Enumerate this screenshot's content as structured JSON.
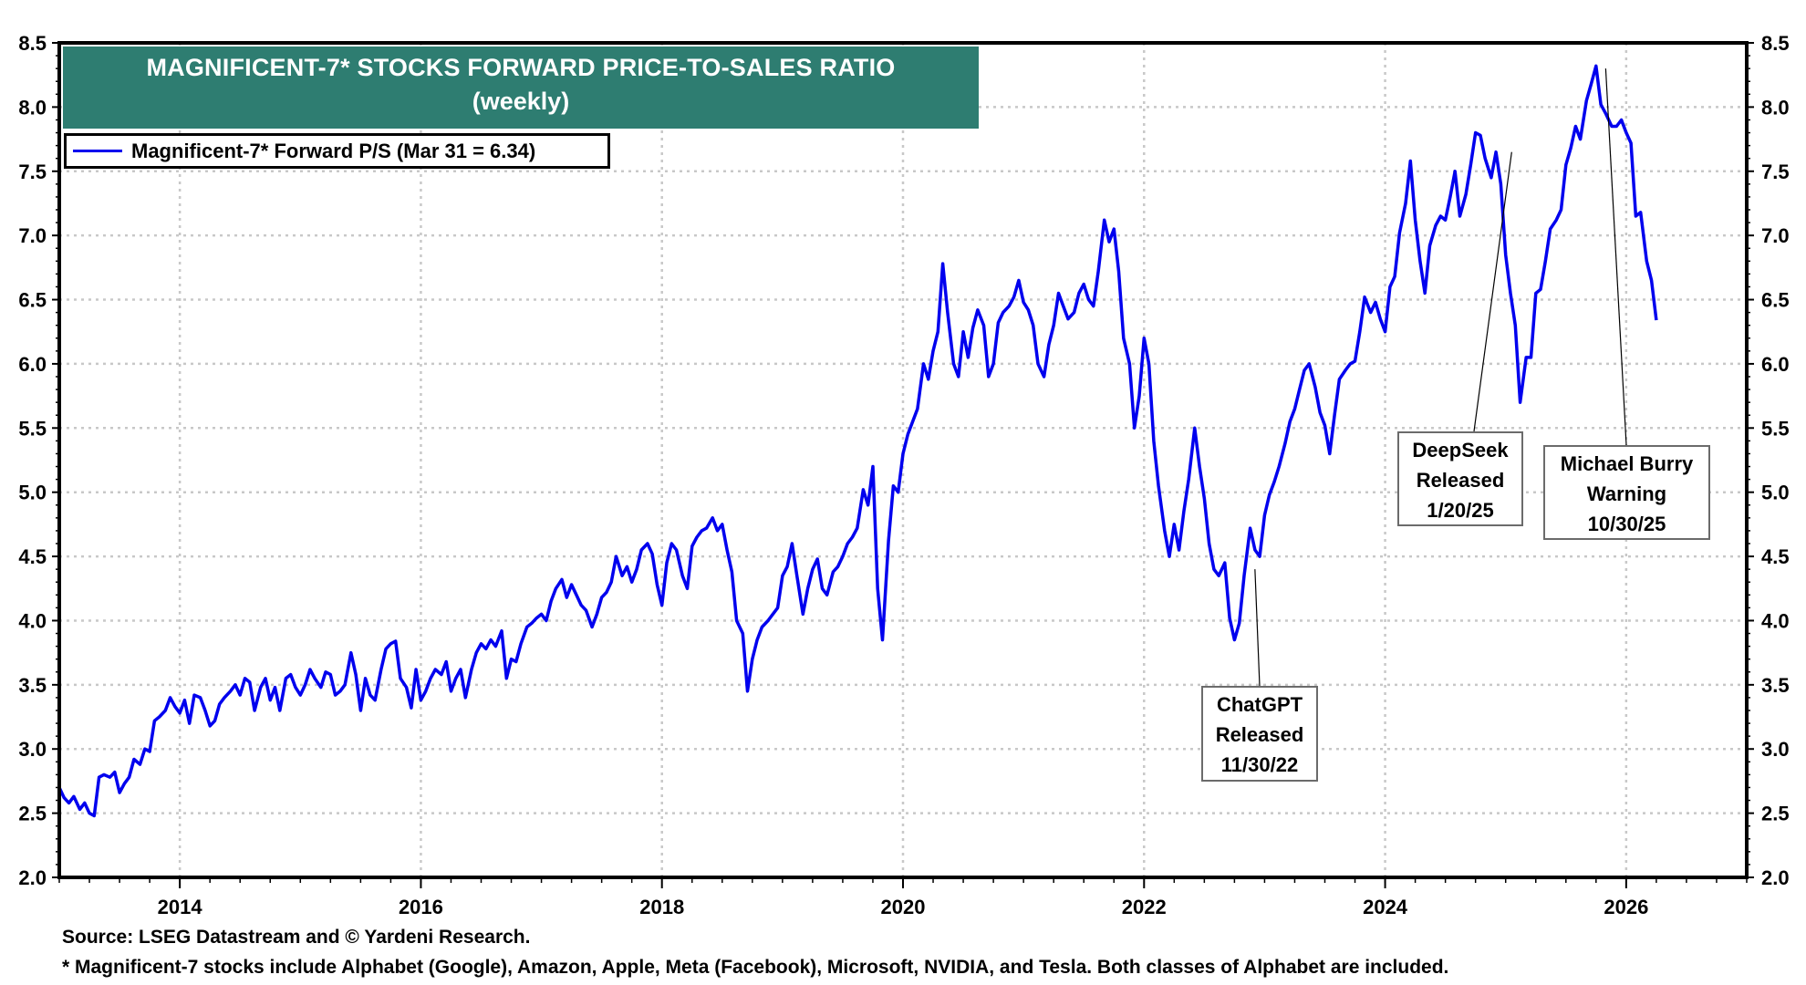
{
  "chart_data": {
    "type": "line",
    "title": "MAGNIFICENT-7* STOCKS FORWARD PRICE-TO-SALES RATIO",
    "subtitle": "(weekly)",
    "xlabel": "",
    "ylabel": "",
    "xlim": [
      2013.0,
      2027.0
    ],
    "ylim": [
      2.0,
      8.5
    ],
    "x_ticks": [
      "2014",
      "2016",
      "2018",
      "2020",
      "2022",
      "2024",
      "2026"
    ],
    "x_tick_values": [
      2014,
      2016,
      2018,
      2020,
      2022,
      2024,
      2026
    ],
    "y_ticks": [
      "2.0",
      "2.5",
      "3.0",
      "3.5",
      "4.0",
      "4.5",
      "5.0",
      "5.5",
      "6.0",
      "6.5",
      "7.0",
      "7.5",
      "8.0",
      "8.5"
    ],
    "y_tick_values": [
      2.0,
      2.5,
      3.0,
      3.5,
      4.0,
      4.5,
      5.0,
      5.5,
      6.0,
      6.5,
      7.0,
      7.5,
      8.0,
      8.5
    ],
    "grid": true,
    "legend_position": "top-left",
    "series": [
      {
        "name": "Magnificent-7* Forward P/S (Mar 31 = 6.34)",
        "color": "#0000ee",
        "x": [
          2013.0,
          2013.04,
          2013.08,
          2013.12,
          2013.17,
          2013.21,
          2013.25,
          2013.29,
          2013.33,
          2013.37,
          2013.42,
          2013.46,
          2013.5,
          2013.54,
          2013.58,
          2013.62,
          2013.67,
          2013.71,
          2013.75,
          2013.79,
          2013.83,
          2013.88,
          2013.92,
          2013.96,
          2014.0,
          2014.04,
          2014.08,
          2014.12,
          2014.17,
          2014.21,
          2014.25,
          2014.29,
          2014.33,
          2014.37,
          2014.42,
          2014.46,
          2014.5,
          2014.54,
          2014.58,
          2014.62,
          2014.67,
          2014.71,
          2014.75,
          2014.79,
          2014.83,
          2014.88,
          2014.92,
          2014.96,
          2015.0,
          2015.04,
          2015.08,
          2015.12,
          2015.17,
          2015.21,
          2015.25,
          2015.29,
          2015.33,
          2015.37,
          2015.42,
          2015.46,
          2015.5,
          2015.54,
          2015.58,
          2015.62,
          2015.67,
          2015.71,
          2015.75,
          2015.79,
          2015.83,
          2015.88,
          2015.92,
          2015.96,
          2016.0,
          2016.04,
          2016.08,
          2016.12,
          2016.17,
          2016.21,
          2016.25,
          2016.29,
          2016.33,
          2016.37,
          2016.42,
          2016.46,
          2016.5,
          2016.54,
          2016.58,
          2016.62,
          2016.67,
          2016.71,
          2016.75,
          2016.79,
          2016.83,
          2016.88,
          2016.92,
          2016.96,
          2017.0,
          2017.04,
          2017.08,
          2017.12,
          2017.17,
          2017.21,
          2017.25,
          2017.29,
          2017.33,
          2017.37,
          2017.42,
          2017.46,
          2017.5,
          2017.54,
          2017.58,
          2017.62,
          2017.67,
          2017.71,
          2017.75,
          2017.79,
          2017.83,
          2017.88,
          2017.92,
          2017.96,
          2018.0,
          2018.04,
          2018.08,
          2018.12,
          2018.17,
          2018.21,
          2018.25,
          2018.29,
          2018.33,
          2018.37,
          2018.42,
          2018.46,
          2018.5,
          2018.54,
          2018.58,
          2018.62,
          2018.67,
          2018.71,
          2018.75,
          2018.79,
          2018.83,
          2018.88,
          2018.92,
          2018.96,
          2019.0,
          2019.04,
          2019.08,
          2019.12,
          2019.17,
          2019.21,
          2019.25,
          2019.29,
          2019.33,
          2019.37,
          2019.42,
          2019.46,
          2019.5,
          2019.54,
          2019.58,
          2019.62,
          2019.67,
          2019.71,
          2019.75,
          2019.79,
          2019.83,
          2019.88,
          2019.92,
          2019.96,
          2020.0,
          2020.04,
          2020.08,
          2020.12,
          2020.17,
          2020.21,
          2020.25,
          2020.29,
          2020.33,
          2020.37,
          2020.42,
          2020.46,
          2020.5,
          2020.54,
          2020.58,
          2020.62,
          2020.67,
          2020.71,
          2020.75,
          2020.79,
          2020.83,
          2020.88,
          2020.92,
          2020.96,
          2021.0,
          2021.04,
          2021.08,
          2021.12,
          2021.17,
          2021.21,
          2021.25,
          2021.29,
          2021.33,
          2021.37,
          2021.42,
          2021.46,
          2021.5,
          2021.54,
          2021.58,
          2021.62,
          2021.67,
          2021.71,
          2021.75,
          2021.79,
          2021.83,
          2021.88,
          2021.92,
          2021.96,
          2022.0,
          2022.04,
          2022.08,
          2022.12,
          2022.17,
          2022.21,
          2022.25,
          2022.29,
          2022.33,
          2022.37,
          2022.42,
          2022.46,
          2022.5,
          2022.54,
          2022.58,
          2022.62,
          2022.67,
          2022.71,
          2022.75,
          2022.79,
          2022.83,
          2022.88,
          2022.92,
          2022.96,
          2023.0,
          2023.04,
          2023.08,
          2023.12,
          2023.17,
          2023.21,
          2023.25,
          2023.29,
          2023.33,
          2023.37,
          2023.42,
          2023.46,
          2023.5,
          2023.54,
          2023.58,
          2023.62,
          2023.67,
          2023.71,
          2023.75,
          2023.79,
          2023.83,
          2023.88,
          2023.92,
          2023.96,
          2024.0,
          2024.04,
          2024.08,
          2024.12,
          2024.17,
          2024.21,
          2024.25,
          2024.29,
          2024.33,
          2024.37,
          2024.42,
          2024.46,
          2024.5,
          2024.54,
          2024.58,
          2024.62,
          2024.67,
          2024.71,
          2024.75,
          2024.79,
          2024.83,
          2024.88,
          2024.92,
          2024.96,
          2025.0,
          2025.04,
          2025.08,
          2025.12,
          2025.17,
          2025.21,
          2025.25,
          2025.29,
          2025.33,
          2025.37,
          2025.42,
          2025.46,
          2025.5,
          2025.54,
          2025.58,
          2025.62,
          2025.67,
          2025.71,
          2025.75,
          2025.79,
          2025.83,
          2025.88,
          2025.92,
          2025.96,
          2026.0,
          2026.04,
          2026.08,
          2026.12,
          2026.17,
          2026.21,
          2026.25
        ],
        "y": [
          2.7,
          2.62,
          2.58,
          2.63,
          2.53,
          2.58,
          2.5,
          2.48,
          2.78,
          2.8,
          2.78,
          2.82,
          2.66,
          2.73,
          2.78,
          2.92,
          2.88,
          3.0,
          2.98,
          3.22,
          3.25,
          3.3,
          3.4,
          3.33,
          3.28,
          3.38,
          3.2,
          3.42,
          3.4,
          3.3,
          3.18,
          3.22,
          3.35,
          3.4,
          3.45,
          3.5,
          3.42,
          3.55,
          3.52,
          3.3,
          3.48,
          3.55,
          3.38,
          3.48,
          3.3,
          3.55,
          3.58,
          3.48,
          3.42,
          3.5,
          3.62,
          3.55,
          3.48,
          3.6,
          3.58,
          3.42,
          3.45,
          3.5,
          3.75,
          3.58,
          3.3,
          3.55,
          3.42,
          3.38,
          3.62,
          3.78,
          3.82,
          3.84,
          3.55,
          3.48,
          3.32,
          3.62,
          3.38,
          3.45,
          3.55,
          3.62,
          3.58,
          3.68,
          3.45,
          3.55,
          3.62,
          3.4,
          3.62,
          3.75,
          3.82,
          3.78,
          3.85,
          3.8,
          3.92,
          3.55,
          3.7,
          3.68,
          3.82,
          3.95,
          3.98,
          4.02,
          4.05,
          4.0,
          4.15,
          4.25,
          4.32,
          4.18,
          4.28,
          4.2,
          4.12,
          4.08,
          3.95,
          4.05,
          4.18,
          4.22,
          4.3,
          4.5,
          4.35,
          4.42,
          4.3,
          4.4,
          4.55,
          4.6,
          4.52,
          4.28,
          4.12,
          4.45,
          4.6,
          4.55,
          4.35,
          4.25,
          4.58,
          4.65,
          4.7,
          4.72,
          4.8,
          4.7,
          4.75,
          4.55,
          4.38,
          4.0,
          3.9,
          3.45,
          3.7,
          3.85,
          3.95,
          4.0,
          4.05,
          4.1,
          4.35,
          4.42,
          4.6,
          4.35,
          4.05,
          4.25,
          4.4,
          4.48,
          4.25,
          4.2,
          4.38,
          4.42,
          4.5,
          4.6,
          4.65,
          4.72,
          5.02,
          4.9,
          5.2,
          4.25,
          3.85,
          4.62,
          5.05,
          5.0,
          5.3,
          5.45,
          5.55,
          5.65,
          6.0,
          5.88,
          6.1,
          6.25,
          6.78,
          6.4,
          6.0,
          5.9,
          6.25,
          6.05,
          6.28,
          6.42,
          6.3,
          5.9,
          6.0,
          6.32,
          6.4,
          6.45,
          6.52,
          6.65,
          6.48,
          6.42,
          6.3,
          6.0,
          5.9,
          6.15,
          6.3,
          6.55,
          6.45,
          6.35,
          6.4,
          6.55,
          6.62,
          6.5,
          6.45,
          6.72,
          7.12,
          6.95,
          7.05,
          6.72,
          6.2,
          6.0,
          5.5,
          5.75,
          6.2,
          6.0,
          5.4,
          5.05,
          4.7,
          4.5,
          4.75,
          4.55,
          4.85,
          5.1,
          5.5,
          5.2,
          4.95,
          4.6,
          4.4,
          4.35,
          4.45,
          4.02,
          3.85,
          3.98,
          4.35,
          4.72,
          4.55,
          4.5,
          4.82,
          4.98,
          5.08,
          5.2,
          5.38,
          5.55,
          5.65,
          5.8,
          5.95,
          6.0,
          5.82,
          5.62,
          5.52,
          5.3,
          5.6,
          5.88,
          5.95,
          6.0,
          6.02,
          6.25,
          6.52,
          6.4,
          6.48,
          6.35,
          6.25,
          6.6,
          6.68,
          7.02,
          7.25,
          7.58,
          7.12,
          6.8,
          6.55,
          6.92,
          7.08,
          7.15,
          7.12,
          7.3,
          7.5,
          7.15,
          7.32,
          7.55,
          7.8,
          7.78,
          7.6,
          7.45,
          7.65,
          7.4,
          6.85,
          6.55,
          6.3,
          5.7,
          6.05,
          6.05,
          6.55,
          6.58,
          6.8,
          7.05,
          7.12,
          7.2,
          7.55,
          7.68,
          7.85,
          7.75,
          8.05,
          8.18,
          8.32,
          8.02,
          7.95,
          7.85,
          7.85,
          7.9,
          7.8,
          7.72,
          7.15,
          7.18,
          6.8,
          6.65,
          6.34
        ]
      }
    ],
    "annotations": [
      {
        "text": [
          "ChatGPT",
          "Released",
          "11/30/22"
        ],
        "date": "11/30/22"
      },
      {
        "text": [
          "DeepSeek",
          "Released",
          "1/20/25"
        ],
        "date": "1/20/25"
      },
      {
        "text": [
          "Michael Burry",
          "Warning",
          "10/30/25"
        ],
        "date": "10/30/25"
      }
    ]
  },
  "title": {
    "line1": "MAGNIFICENT-7* STOCKS FORWARD PRICE-TO-SALES RATIO",
    "line2": "(weekly)",
    "background": "#2e7d71"
  },
  "legend": {
    "label": "Magnificent-7* Forward P/S (Mar 31 = 6.34)"
  },
  "annotations": {
    "chatgpt": {
      "line1": "ChatGPT",
      "line2": "Released",
      "line3": "11/30/22"
    },
    "deepseek": {
      "line1": "DeepSeek",
      "line2": "Released",
      "line3": "1/20/25"
    },
    "burry": {
      "line1": "Michael Burry",
      "line2": "Warning",
      "line3": "10/30/25"
    }
  },
  "footer": {
    "source": "Source: LSEG Datastream and © Yardeni Research.",
    "note": "* Magnificent-7 stocks include Alphabet (Google), Amazon, Apple, Meta (Facebook), Microsoft, NVIDIA, and Tesla. Both classes of Alphabet are included."
  }
}
